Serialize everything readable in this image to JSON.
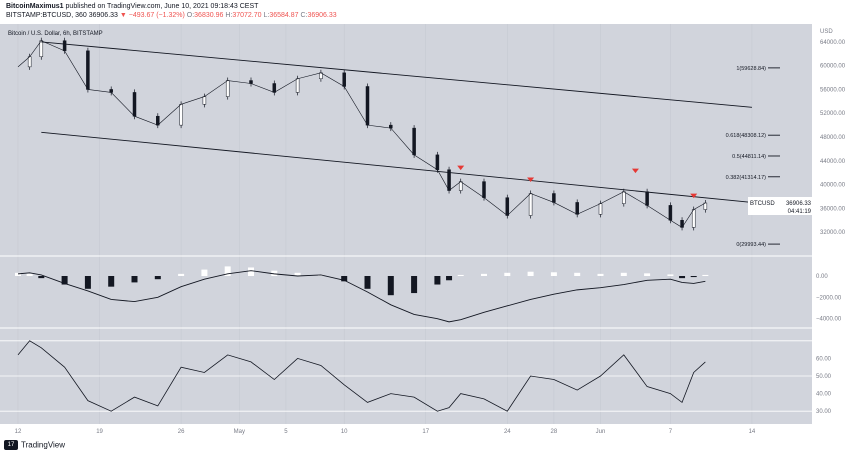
{
  "header": {
    "author": "BitcoinMaximus1",
    "published": "published on TradingView.com, June 10, 2021 09:18:43 CEST",
    "symbol": "BITSTAMP:BTCUSD, 360",
    "price": "36906.33",
    "change": "▼ −493.67 (−1.32%)",
    "o_label": "O:",
    "o": "36830.96",
    "h_label": "H:",
    "h": "37072.70",
    "l_label": "L:",
    "l": "36584.87",
    "c_label": "C:",
    "c": "36906.33"
  },
  "chart_title": "Bitcoin / U.S. Dollar, 6h, BITSTAMP",
  "footer": {
    "brand": "TradingView",
    "logo": "17"
  },
  "colors": {
    "panel_bg": "#d1d4dc",
    "candle": "#131722",
    "marker": "#e53935",
    "divider": "#ffffff",
    "label_bg": "#ffffff"
  },
  "chart_data": {
    "type": "line",
    "price_axis": {
      "label": "USD",
      "ticks": [
        64000,
        60000,
        56000,
        52000,
        48000,
        44000,
        40000,
        36000,
        32000
      ],
      "range": [
        29000,
        66000
      ]
    },
    "x_ticks": [
      "12",
      "19",
      "26",
      "May",
      "5",
      "10",
      "17",
      "24",
      "28",
      "Jun",
      "7",
      "14"
    ],
    "price_series": {
      "name": "BTCUSD",
      "x": [
        "Apr 12",
        "Apr 13",
        "Apr 14",
        "Apr 16",
        "Apr 18",
        "Apr 20",
        "Apr 22",
        "Apr 24",
        "Apr 26",
        "Apr 28",
        "Apr 30",
        "May 2",
        "May 4",
        "May 6",
        "May 8",
        "May 10",
        "May 12",
        "May 14",
        "May 16",
        "May 18",
        "May 19",
        "May 20",
        "May 22",
        "May 24",
        "May 26",
        "May 28",
        "May 30",
        "Jun 1",
        "Jun 3",
        "Jun 5",
        "Jun 7",
        "Jun 8",
        "Jun 9",
        "Jun 10"
      ],
      "values": [
        59800,
        61500,
        64200,
        62500,
        56000,
        55500,
        51500,
        50000,
        53500,
        54800,
        57500,
        57000,
        55500,
        57800,
        58800,
        56500,
        50000,
        49500,
        45000,
        42500,
        39000,
        40500,
        37800,
        34800,
        38500,
        37000,
        35000,
        36800,
        38800,
        36500,
        34000,
        32800,
        35800,
        36906
      ]
    },
    "channel_upper": {
      "x": [
        "Apr 14",
        "Jun 14"
      ],
      "values": [
        64000,
        53000
      ]
    },
    "channel_lower": {
      "x": [
        "Apr 14",
        "Jun 14"
      ],
      "values": [
        48800,
        37000
      ]
    },
    "fibonacci": [
      {
        "label": "1(59628.84)",
        "value": 59628.84
      },
      {
        "label": "0.618(48308.12)",
        "value": 48308.12
      },
      {
        "label": "0.5(44811.14)",
        "value": 44811.14
      },
      {
        "label": "0.382(41314.17)",
        "value": 41314.17
      },
      {
        "label": "0(29993.44)",
        "value": 29993.44
      }
    ],
    "rejection_markers": [
      "May 20",
      "May 26",
      "Jun 4",
      "Jun 9"
    ],
    "last_price": {
      "label": "BTCUSD",
      "value": "36906.33",
      "countdown": "04:41:19"
    },
    "macd": {
      "axis_ticks": [
        0,
        -2000,
        -4000
      ],
      "axis_tick_labels": [
        "0.00",
        "−2000.00",
        "−4000.00"
      ],
      "histogram": [
        300,
        200,
        -200,
        -800,
        -1200,
        -1000,
        -600,
        -300,
        200,
        600,
        900,
        800,
        500,
        300,
        100,
        -500,
        -1200,
        -1800,
        -1600,
        -800,
        -400,
        100,
        200,
        300,
        400,
        350,
        300,
        200,
        300,
        250,
        150,
        -200,
        -100,
        100
      ],
      "macd_line": [
        200,
        300,
        100,
        -700,
        -1400,
        -2200,
        -2400,
        -2000,
        -1000,
        -300,
        200,
        500,
        200,
        0,
        100,
        -400,
        -1500,
        -2700,
        -3600,
        -4000,
        -4300,
        -4100,
        -3400,
        -2800,
        -2200,
        -1700,
        -1300,
        -1100,
        -800,
        -400,
        -300,
        -600,
        -700,
        -500
      ]
    },
    "rsi": {
      "axis_ticks": [
        60,
        50,
        40,
        30
      ],
      "axis_tick_labels": [
        "60.00",
        "50.00",
        "40.00",
        "30.00"
      ],
      "levels": [
        70,
        50,
        30
      ],
      "values": [
        62,
        70,
        66,
        55,
        36,
        30,
        38,
        33,
        55,
        52,
        62,
        58,
        48,
        60,
        56,
        45,
        35,
        40,
        38,
        30,
        32,
        40,
        37,
        30,
        50,
        48,
        42,
        50,
        62,
        44,
        40,
        35,
        52,
        58
      ]
    }
  }
}
